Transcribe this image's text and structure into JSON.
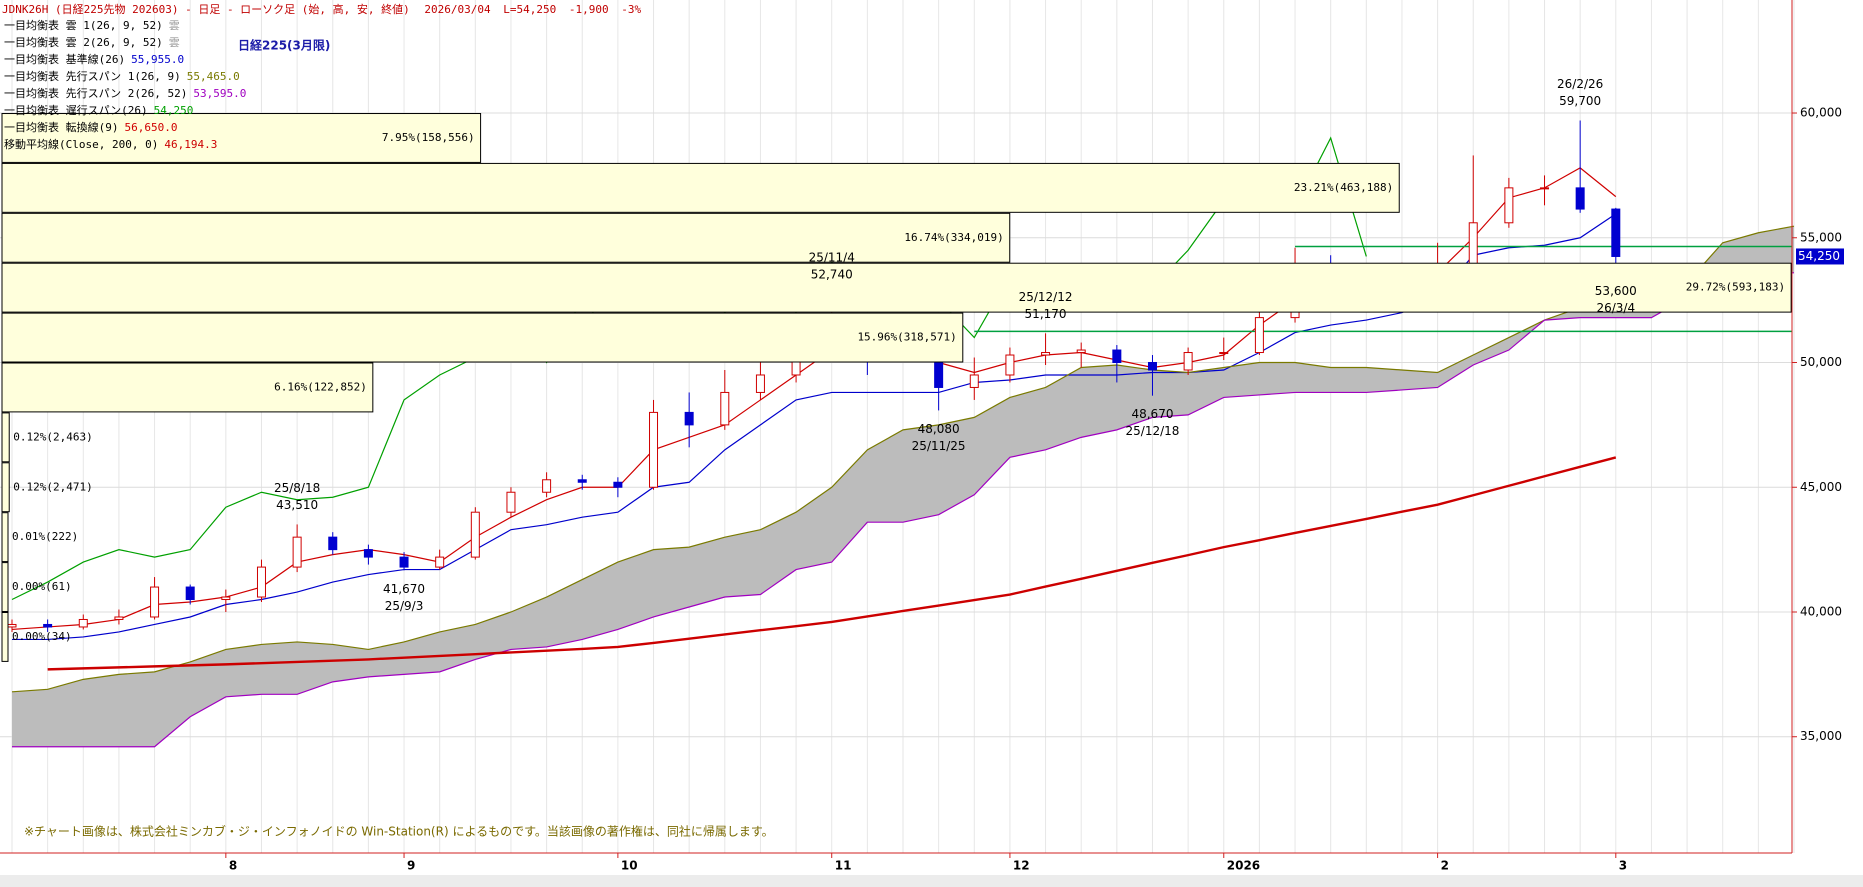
{
  "header": {
    "symbol": "JDNK26H (日経225先物 202603) - 日足 - ローソク足 (始, 高, 安, 終値)",
    "date": "2026/03/04",
    "last": "L=54,250",
    "change": "-1,900",
    "pct": "-3%"
  },
  "chart_data": {
    "type": "candlestick",
    "title": "日経225(3月限)",
    "categories": [
      null,
      null,
      null,
      null,
      null,
      null,
      "8",
      null,
      null,
      null,
      null,
      "9",
      null,
      null,
      null,
      null,
      null,
      "10",
      null,
      null,
      null,
      null,
      null,
      "11",
      null,
      null,
      null,
      null,
      "12",
      null,
      null,
      null,
      null,
      null,
      "2026",
      null,
      null,
      null,
      null,
      null,
      "2",
      null,
      null,
      null,
      null,
      "3",
      null,
      null,
      null,
      null,
      null
    ],
    "open": [
      39400,
      39500,
      39400,
      39700,
      39800,
      41000,
      40500,
      40600,
      41800,
      43000,
      42500,
      42200,
      41800,
      42200,
      44000,
      44800,
      45300,
      45200,
      45000,
      48000,
      47500,
      48800,
      49500,
      50500,
      51500,
      50500,
      50600,
      49000,
      49500,
      50300,
      50400,
      50500,
      50000,
      49700,
      50400,
      50400,
      51800,
      53800,
      53000,
      53200,
      53500,
      53500,
      55600,
      57000,
      57000,
      56150,
      null,
      null,
      null,
      null,
      null
    ],
    "high": [
      39700,
      39700,
      39900,
      40100,
      41400,
      41100,
      40900,
      42100,
      43510,
      43200,
      42700,
      42400,
      42500,
      44200,
      45000,
      45600,
      45500,
      45400,
      48500,
      48800,
      49700,
      50300,
      51000,
      52740,
      51800,
      51200,
      50800,
      50200,
      50600,
      51170,
      50800,
      50700,
      50300,
      50600,
      51000,
      52300,
      54600,
      54300,
      53800,
      54000,
      54800,
      58300,
      57400,
      57500,
      59700,
      56200,
      null,
      null,
      null,
      null,
      null
    ],
    "low": [
      39200,
      39200,
      39300,
      39500,
      39700,
      40300,
      40000,
      40400,
      41600,
      42300,
      41900,
      41670,
      41700,
      42100,
      43800,
      44600,
      44900,
      44600,
      44900,
      46600,
      47300,
      48500,
      49200,
      50300,
      49500,
      50000,
      48080,
      48500,
      49200,
      49900,
      49800,
      49200,
      48670,
      49500,
      50100,
      50300,
      51600,
      52600,
      52200,
      52800,
      53000,
      53400,
      55400,
      56300,
      56000,
      53600,
      null,
      null,
      null,
      null,
      null
    ],
    "close": [
      39500,
      39400,
      39700,
      39800,
      41000,
      40500,
      40600,
      41800,
      43000,
      42500,
      42200,
      41800,
      42200,
      44000,
      44800,
      45300,
      45200,
      45000,
      48000,
      47500,
      48800,
      49500,
      50500,
      51500,
      50500,
      50600,
      49000,
      49500,
      50300,
      50400,
      50500,
      50000,
      49700,
      50400,
      50400,
      51800,
      53800,
      53000,
      53200,
      53500,
      53500,
      55600,
      57000,
      57000,
      56150,
      54250,
      null,
      null,
      null,
      null,
      null
    ],
    "up_color": "#d00000",
    "down_color": "#0000d0",
    "clouds": [
      {
        "name": "一目均衡表 雲 1(26, 9, 52)",
        "value_label": "雲"
      },
      {
        "name": "一目均衡表 雲 2(26, 9, 52)",
        "value_label": "雲"
      }
    ],
    "cloud_color": "#bcbcbc",
    "cloud_between": [
      1,
      2
    ],
    "series": [
      {
        "name": "一目均衡表 基準線(26)",
        "value_label": "55,955.0",
        "color": "#0000cc",
        "values": [
          38900,
          38900,
          39000,
          39200,
          39500,
          39800,
          40300,
          40500,
          40800,
          41200,
          41500,
          41700,
          41700,
          42500,
          43300,
          43500,
          43800,
          44000,
          45000,
          45200,
          46500,
          47500,
          48500,
          48800,
          48800,
          48800,
          48800,
          49200,
          49300,
          49500,
          49500,
          49500,
          49600,
          49600,
          49700,
          50400,
          51200,
          51500,
          51700,
          52000,
          52600,
          54300,
          54600,
          54700,
          55000,
          55955,
          null,
          null,
          null,
          null,
          null
        ]
      },
      {
        "name": "一目均衡表 先行スパン 1(26, 9)",
        "value_label": "55,465.0",
        "color": "#7a7a00",
        "values": [
          36800,
          36900,
          37300,
          37500,
          37600,
          38000,
          38500,
          38700,
          38800,
          38700,
          38500,
          38800,
          39200,
          39500,
          40000,
          40600,
          41300,
          42000,
          42500,
          42600,
          43000,
          43300,
          44000,
          45000,
          46500,
          47300,
          47500,
          47800,
          48600,
          49000,
          49800,
          49900,
          49700,
          49600,
          49800,
          50000,
          50000,
          49800,
          49800,
          49700,
          49600,
          50300,
          51000,
          51700,
          52200,
          52600,
          53000,
          53200,
          54800,
          55200,
          55465
        ]
      },
      {
        "name": "一目均衡表 先行スパン 2(26, 52)",
        "value_label": "53,595.0",
        "color": "#a000c0",
        "values": [
          34600,
          34600,
          34600,
          34600,
          34600,
          35800,
          36600,
          36700,
          36700,
          37200,
          37400,
          37500,
          37600,
          38100,
          38500,
          38600,
          38900,
          39300,
          39800,
          40200,
          40600,
          40700,
          41700,
          42000,
          43600,
          43600,
          43900,
          44700,
          46200,
          46500,
          47000,
          47300,
          47800,
          47900,
          48600,
          48700,
          48800,
          48800,
          48800,
          48900,
          49000,
          49900,
          50500,
          51700,
          51800,
          51800,
          51800,
          52600,
          53600,
          53600,
          53595
        ]
      },
      {
        "name": "一目均衡表 遅行スパン(26)",
        "value_label": "54,250",
        "color": "#00a000",
        "values": [
          40500,
          41200,
          42000,
          42500,
          42200,
          42500,
          44200,
          44800,
          44500,
          44600,
          45000,
          48500,
          49500,
          50200,
          51500,
          50000,
          52500,
          50800,
          51000,
          50500,
          52000,
          50500,
          52000,
          54000,
          53000,
          52800,
          52500,
          51000,
          53500,
          53600,
          52500,
          53500,
          53000,
          54500,
          56500,
          57500,
          56200,
          59000,
          54250,
          null,
          null,
          null,
          null,
          null,
          null,
          null,
          null,
          null,
          null,
          null,
          null
        ]
      },
      {
        "name": "一目均衡表 転換線(9)",
        "value_label": "56,650.0",
        "color": "#d00000",
        "values": [
          39300,
          39400,
          39500,
          39700,
          40300,
          40400,
          40600,
          41000,
          42000,
          42300,
          42500,
          42300,
          42000,
          43000,
          43800,
          44500,
          45000,
          45000,
          46500,
          47000,
          47500,
          48500,
          49500,
          50500,
          51000,
          50800,
          50000,
          49600,
          50000,
          50300,
          50400,
          50100,
          49800,
          50000,
          50300,
          51500,
          52500,
          53000,
          53000,
          53300,
          53600,
          55000,
          56600,
          57000,
          57800,
          56650,
          null,
          null,
          null,
          null,
          null
        ]
      },
      {
        "name": "移動平均線(Close, 200, 0)",
        "value_label": "46,194.3",
        "color": "#cc0000",
        "width": 2.4,
        "values": [
          null,
          37700,
          37740,
          37780,
          37820,
          37860,
          37900,
          37950,
          38000,
          38050,
          38100,
          38170,
          38240,
          38310,
          38380,
          38450,
          38520,
          38600,
          38760,
          38930,
          39100,
          39270,
          39430,
          39600,
          39820,
          40040,
          40260,
          40480,
          40700,
          41020,
          41330,
          41650,
          41970,
          42280,
          42600,
          42880,
          43170,
          43450,
          43730,
          44020,
          44300,
          44680,
          45060,
          45440,
          45820,
          46194.3,
          null,
          null,
          null,
          null,
          null
        ]
      }
    ],
    "ylim": [
      30340,
      64530
    ],
    "yticks": [
      {
        "value": 35000,
        "label": "35,000"
      },
      {
        "value": 40000,
        "label": "40,000"
      },
      {
        "value": 45000,
        "label": "45,000"
      },
      {
        "value": 50000,
        "label": "50,000"
      },
      {
        "value": 55000,
        "label": "55,000"
      },
      {
        "value": 60000,
        "label": "60,000"
      }
    ],
    "grid": true,
    "price_tag": {
      "value": 54250,
      "label": "54,250"
    },
    "hlines": [
      {
        "value": 54650,
        "from": 36
      },
      {
        "value": 51250,
        "from": 27
      }
    ],
    "hline_color": "#00a040",
    "annotations": [
      {
        "date": "25/8/18",
        "label": "43,510",
        "value": 43510,
        "at": 8,
        "side": "above"
      },
      {
        "date": "25/9/3",
        "label": "41,670",
        "value": 41670,
        "at": 11,
        "side": "below"
      },
      {
        "date": "25/11/4",
        "label": "52,740",
        "value": 52740,
        "at": 23,
        "side": "above"
      },
      {
        "date": "25/11/25",
        "label": "48,080",
        "value": 48080,
        "at": 26,
        "side": "below"
      },
      {
        "date": "25/12/12",
        "label": "51,170",
        "value": 51170,
        "at": 29,
        "side": "above"
      },
      {
        "date": "25/12/18",
        "label": "48,670",
        "value": 48670,
        "at": 32,
        "side": "below"
      },
      {
        "date": "26/2/26",
        "label": "59,700",
        "value": 59700,
        "at": 44,
        "side": "above"
      },
      {
        "date": "26/3/4",
        "label": "53,600",
        "value": 53600,
        "at": 45,
        "side": "below"
      }
    ],
    "volume_profile": {
      "bins": [
        38000,
        40000,
        42000,
        44000,
        46000,
        48000,
        50000,
        52000,
        54000,
        56000,
        58000,
        60000
      ],
      "values": [
        0.0,
        0.0,
        0.01,
        0.12,
        0.12,
        6.16,
        15.96,
        29.72,
        16.74,
        23.21,
        7.95
      ],
      "value_labels": [
        "0.00%(34)",
        "0.00%(61)",
        "0.01%(222)",
        "0.12%(2,471)",
        "0.12%(2,463)",
        "6.16%(122,852)",
        "15.96%(318,571)",
        "29.72%(593,183)",
        "16.74%(334,019)",
        "23.21%(463,188)",
        "7.95%(158,556)"
      ],
      "color": "#ffffdc"
    },
    "footer": "※チャート画像は、株式会社ミンカブ・ジ・インフォノイドの Win-Station(R) によるものです。当該画像の著作権は、同社に帰属します。"
  }
}
